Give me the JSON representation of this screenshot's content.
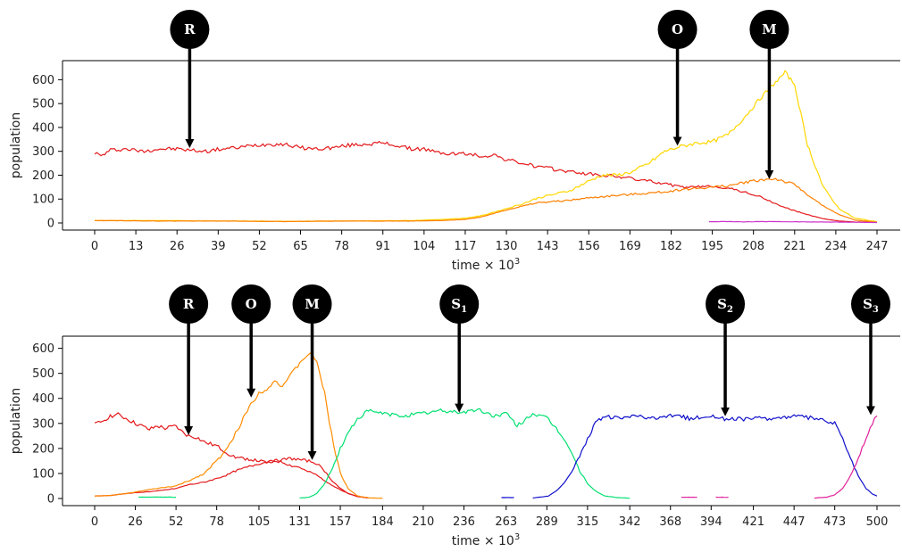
{
  "chart_data": [
    {
      "type": "line",
      "xlabel": "time",
      "xlabel_multiplier": "× 10",
      "xlabel_exponent": "3",
      "ylabel": "population",
      "xlim": [
        0,
        247
      ],
      "ylim": [
        0,
        650
      ],
      "xticks": [
        0,
        13,
        26,
        39,
        52,
        65,
        78,
        91,
        104,
        117,
        130,
        143,
        156,
        169,
        182,
        195,
        208,
        221,
        234,
        247
      ],
      "yticks": [
        0,
        100,
        200,
        300,
        400,
        500,
        600
      ],
      "colors": {
        "red": "#e41a1c",
        "orange": "#ff7f00",
        "yellow": "#ffd700",
        "magenta": "#cc33cc"
      },
      "series": [
        {
          "color": "red",
          "x": [
            0,
            2,
            5,
            10,
            15,
            20,
            26,
            30,
            35,
            40,
            45,
            50,
            55,
            60,
            65,
            70,
            75,
            80,
            85,
            91,
            95,
            100,
            104,
            108,
            112,
            117,
            122,
            126,
            130,
            135,
            140,
            145,
            150,
            156,
            160,
            165,
            170,
            175,
            180,
            185,
            190,
            195,
            200,
            205,
            210,
            215,
            220,
            225,
            230,
            235,
            240,
            247
          ],
          "y": [
            295,
            280,
            305,
            310,
            300,
            310,
            310,
            305,
            300,
            310,
            315,
            325,
            330,
            330,
            315,
            310,
            315,
            325,
            330,
            335,
            325,
            310,
            310,
            295,
            290,
            290,
            280,
            285,
            265,
            250,
            235,
            225,
            215,
            205,
            200,
            195,
            185,
            175,
            165,
            150,
            150,
            155,
            145,
            130,
            110,
            80,
            55,
            35,
            18,
            8,
            4,
            2
          ]
        },
        {
          "color": "yellow",
          "x": [
            0,
            20,
            40,
            60,
            80,
            100,
            110,
            117,
            122,
            126,
            130,
            135,
            140,
            145,
            150,
            156,
            160,
            165,
            170,
            175,
            180,
            185,
            190,
            195,
            200,
            205,
            210,
            215,
            218,
            221,
            225,
            230,
            235,
            240,
            247
          ],
          "y": [
            10,
            10,
            8,
            7,
            8,
            10,
            15,
            20,
            30,
            45,
            60,
            80,
            105,
            120,
            135,
            175,
            200,
            200,
            215,
            250,
            300,
            320,
            335,
            340,
            370,
            440,
            520,
            590,
            630,
            580,
            330,
            150,
            60,
            20,
            5
          ]
        },
        {
          "color": "orange",
          "x": [
            0,
            20,
            40,
            60,
            80,
            100,
            110,
            117,
            122,
            126,
            130,
            135,
            140,
            145,
            150,
            156,
            160,
            165,
            170,
            175,
            180,
            185,
            190,
            195,
            200,
            205,
            210,
            215,
            221,
            225,
            230,
            235,
            240,
            247
          ],
          "y": [
            10,
            8,
            8,
            6,
            8,
            8,
            10,
            15,
            25,
            40,
            55,
            70,
            85,
            90,
            95,
            105,
            110,
            115,
            120,
            125,
            130,
            140,
            145,
            150,
            155,
            170,
            180,
            185,
            160,
            120,
            70,
            35,
            12,
            3
          ]
        },
        {
          "color": "magenta",
          "x": [
            194,
            200,
            205,
            210,
            220,
            230,
            240,
            247
          ],
          "y": [
            5,
            6,
            4,
            6,
            5,
            4,
            3,
            2
          ]
        }
      ],
      "markers": [
        {
          "label": "R",
          "sub": "",
          "x": 30,
          "y": 310
        },
        {
          "label": "O",
          "sub": "",
          "x": 184,
          "y": 320
        },
        {
          "label": "M",
          "sub": "",
          "x": 213,
          "y": 180
        }
      ]
    },
    {
      "type": "line",
      "xlabel": "time",
      "xlabel_multiplier": "× 10",
      "xlabel_exponent": "3",
      "ylabel": "population",
      "xlim": [
        0,
        500
      ],
      "ylim": [
        0,
        620
      ],
      "xticks": [
        0,
        26,
        52,
        78,
        105,
        131,
        157,
        184,
        210,
        236,
        263,
        289,
        315,
        342,
        368,
        394,
        421,
        447,
        473,
        500
      ],
      "yticks": [
        0,
        100,
        200,
        300,
        400,
        500,
        600
      ],
      "colors": {
        "red": "#e41a1c",
        "orange": "#ff8c00",
        "green": "#00e070",
        "blue": "#1010cc",
        "magenta": "#e0209a"
      },
      "series": [
        {
          "color": "red",
          "x": [
            0,
            5,
            10,
            15,
            20,
            26,
            30,
            35,
            40,
            45,
            52,
            55,
            60,
            65,
            70,
            78,
            85,
            90,
            95,
            100,
            105,
            110,
            115,
            120,
            126,
            131,
            135,
            140,
            145,
            150,
            157,
            162,
            168,
            175
          ],
          "y": [
            295,
            310,
            330,
            335,
            320,
            300,
            290,
            275,
            290,
            280,
            290,
            270,
            250,
            245,
            225,
            210,
            180,
            165,
            160,
            155,
            150,
            145,
            150,
            145,
            130,
            125,
            110,
            100,
            80,
            60,
            35,
            20,
            8,
            2
          ]
        },
        {
          "color": "red",
          "x": [
            0,
            10,
            20,
            30,
            40,
            52,
            60,
            70,
            78,
            85,
            90,
            95,
            100,
            105,
            110,
            115,
            120,
            125,
            131,
            137,
            142,
            147,
            152,
            157,
            162,
            168,
            175
          ],
          "y": [
            10,
            12,
            20,
            25,
            30,
            40,
            55,
            65,
            80,
            95,
            110,
            120,
            130,
            140,
            145,
            150,
            155,
            160,
            155,
            150,
            140,
            110,
            70,
            40,
            20,
            8,
            2
          ]
        },
        {
          "color": "orange",
          "x": [
            0,
            10,
            20,
            30,
            40,
            52,
            60,
            70,
            78,
            85,
            90,
            95,
            100,
            105,
            110,
            115,
            120,
            125,
            131,
            135,
            138,
            142,
            147,
            150,
            154,
            157,
            162,
            168,
            175,
            184
          ],
          "y": [
            10,
            12,
            20,
            30,
            40,
            50,
            70,
            100,
            150,
            200,
            260,
            320,
            380,
            420,
            440,
            470,
            450,
            490,
            540,
            570,
            575,
            550,
            420,
            300,
            180,
            100,
            40,
            10,
            3,
            1
          ]
        },
        {
          "color": "green",
          "x": [
            28,
            40,
            52
          ],
          "y": [
            5,
            6,
            5
          ]
        },
        {
          "color": "green",
          "x": [
            131,
            137,
            142,
            147,
            152,
            157,
            162,
            168,
            175,
            184,
            195,
            210,
            220,
            236,
            245,
            255,
            263,
            270,
            280,
            289,
            295,
            300,
            305,
            310,
            315,
            320,
            326,
            335,
            342
          ],
          "y": [
            2,
            5,
            20,
            60,
            120,
            200,
            260,
            320,
            350,
            340,
            330,
            340,
            350,
            345,
            355,
            330,
            340,
            290,
            340,
            320,
            280,
            240,
            180,
            110,
            60,
            30,
            10,
            3,
            1
          ]
        },
        {
          "color": "blue",
          "x": [
            260,
            268
          ],
          "y": [
            4,
            4
          ]
        },
        {
          "color": "blue",
          "x": [
            280,
            290,
            295,
            300,
            305,
            310,
            315,
            320,
            326,
            335,
            342,
            350,
            360,
            368,
            380,
            394,
            405,
            421,
            435,
            447,
            460,
            473,
            478,
            483,
            488,
            493,
            497,
            500
          ],
          "y": [
            2,
            10,
            30,
            60,
            110,
            170,
            240,
            300,
            330,
            320,
            330,
            325,
            315,
            335,
            320,
            330,
            315,
            320,
            320,
            330,
            320,
            300,
            240,
            160,
            90,
            40,
            18,
            10
          ]
        },
        {
          "color": "magenta",
          "x": [
            375,
            385
          ],
          "y": [
            5,
            5
          ]
        },
        {
          "color": "magenta",
          "x": [
            397,
            405
          ],
          "y": [
            5,
            5
          ]
        },
        {
          "color": "magenta",
          "x": [
            460,
            468,
            473,
            478,
            483,
            488,
            493,
            497,
            500
          ],
          "y": [
            2,
            5,
            15,
            40,
            90,
            160,
            240,
            300,
            330
          ]
        }
      ],
      "markers": [
        {
          "label": "R",
          "sub": "",
          "x": 60,
          "y": 250
        },
        {
          "label": "O",
          "sub": "",
          "x": 100,
          "y": 400
        },
        {
          "label": "M",
          "sub": "",
          "x": 139,
          "y": 150
        },
        {
          "label": "S",
          "sub": "1",
          "x": 233,
          "y": 340
        },
        {
          "label": "S",
          "sub": "2",
          "x": 403,
          "y": 325
        },
        {
          "label": "S",
          "sub": "3",
          "x": 496,
          "y": 330
        }
      ]
    }
  ]
}
